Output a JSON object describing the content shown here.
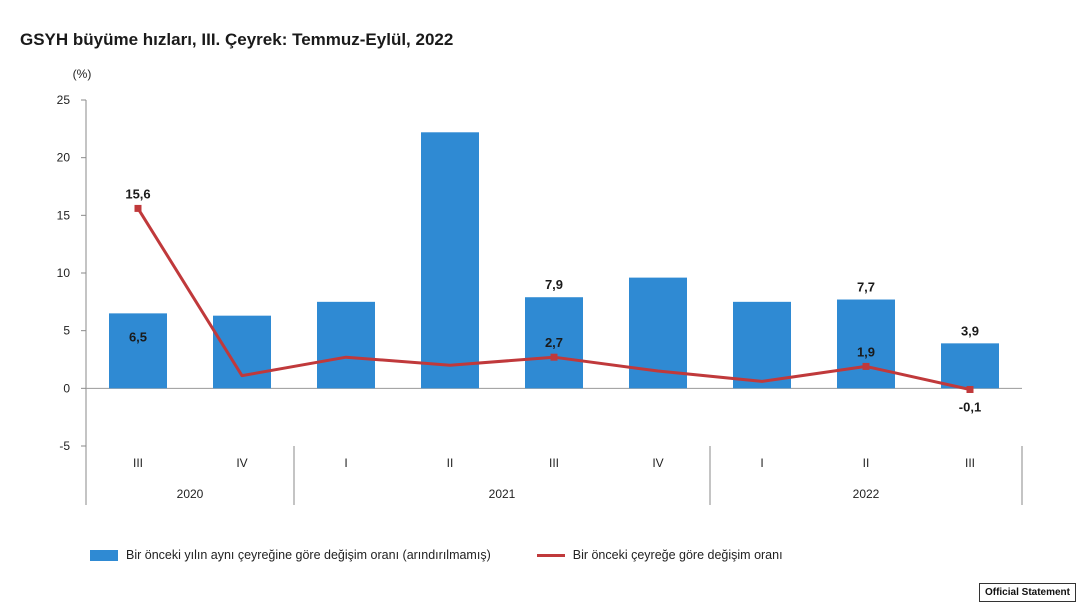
{
  "badge": "Official Statement",
  "chart_data": {
    "type": "bar",
    "title": "GSYH büyüme hızları, III. Çeyrek: Temmuz-Eylül, 2022",
    "ylabel": "(%)",
    "ylim": [
      -5,
      25
    ],
    "yticks": [
      25,
      20,
      15,
      10,
      5,
      0,
      -5
    ],
    "categories": [
      "III",
      "IV",
      "I",
      "II",
      "III",
      "IV",
      "I",
      "II",
      "III"
    ],
    "years": [
      {
        "label": "2020",
        "span": 2
      },
      {
        "label": "2021",
        "span": 4
      },
      {
        "label": "2022",
        "span": 3
      }
    ],
    "series": [
      {
        "name": "Bir önceki yılın aynı çeyreğine göre değişim oranı (arındırılmamış)",
        "kind": "bar",
        "color": "#2f8ad3",
        "values": [
          6.5,
          6.3,
          7.5,
          22.2,
          7.9,
          9.6,
          7.5,
          7.7,
          3.9
        ],
        "labels": [
          "6,5",
          "",
          "",
          "",
          "7,9",
          "",
          "",
          "7,7",
          "3,9"
        ]
      },
      {
        "name": "Bir önceki çeyreğe göre değişim oranı",
        "kind": "line",
        "color": "#c0393b",
        "values": [
          15.6,
          1.1,
          2.7,
          2.0,
          2.7,
          1.5,
          0.6,
          1.9,
          -0.1
        ],
        "labels": [
          "15,6",
          "",
          "",
          "",
          "2,7",
          "",
          "",
          "1,9",
          "-0,1"
        ]
      }
    ]
  }
}
